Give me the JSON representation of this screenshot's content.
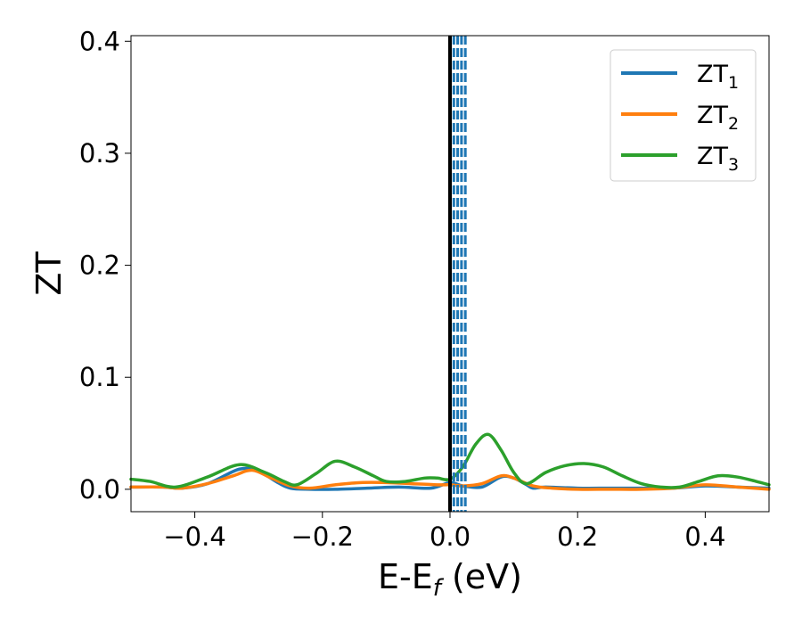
{
  "chart_data": {
    "type": "line",
    "title": "",
    "xlabel": "E-E",
    "xlabel_sub": "f",
    "xlabel_unit": " (eV)",
    "ylabel": "ZT",
    "xlim": [
      -0.5,
      0.5
    ],
    "ylim": [
      -0.02,
      0.405
    ],
    "xticks": [
      -0.4,
      -0.2,
      0.0,
      0.2,
      0.4
    ],
    "xtick_labels": [
      "−0.4",
      "−0.2",
      "0.0",
      "0.2",
      "0.4"
    ],
    "yticks": [
      0.0,
      0.1,
      0.2,
      0.3,
      0.4
    ],
    "ytick_labels": [
      "0.0",
      "0.1",
      "0.2",
      "0.3",
      "0.4"
    ],
    "grid": false,
    "legend_position": "top-right",
    "vertical_lines": [
      {
        "x": 0.0,
        "style": "solid",
        "color": "#000000"
      },
      {
        "x": 0.006,
        "style": "dashed",
        "color": "#1f77b4"
      },
      {
        "x": 0.012,
        "style": "dashed",
        "color": "#1f77b4"
      },
      {
        "x": 0.018,
        "style": "dashed",
        "color": "#1f77b4"
      },
      {
        "x": 0.024,
        "style": "dashed",
        "color": "#1f77b4"
      }
    ],
    "series": [
      {
        "name": "ZT",
        "name_sub": "1",
        "color": "#1f77b4",
        "x": [
          -0.5,
          -0.45,
          -0.42,
          -0.38,
          -0.33,
          -0.3,
          -0.27,
          -0.25,
          -0.22,
          -0.18,
          -0.13,
          -0.08,
          -0.03,
          0.0,
          0.02,
          0.05,
          0.08,
          0.1,
          0.12,
          0.13,
          0.15,
          0.2,
          0.25,
          0.3,
          0.35,
          0.4,
          0.45,
          0.5
        ],
        "y": [
          0.002,
          0.002,
          0.001,
          0.005,
          0.018,
          0.016,
          0.006,
          0.001,
          0.0,
          0.0,
          0.001,
          0.002,
          0.001,
          0.006,
          0.003,
          0.002,
          0.011,
          0.01,
          0.004,
          0.001,
          0.002,
          0.001,
          0.001,
          0.001,
          0.001,
          0.003,
          0.002,
          0.001
        ]
      },
      {
        "name": "ZT",
        "name_sub": "2",
        "color": "#ff7f0e",
        "x": [
          -0.5,
          -0.45,
          -0.42,
          -0.38,
          -0.34,
          -0.31,
          -0.28,
          -0.25,
          -0.22,
          -0.18,
          -0.14,
          -0.1,
          -0.06,
          -0.02,
          0.0,
          0.02,
          0.05,
          0.08,
          0.1,
          0.13,
          0.16,
          0.2,
          0.25,
          0.3,
          0.35,
          0.4,
          0.45,
          0.5
        ],
        "y": [
          0.002,
          0.002,
          0.001,
          0.005,
          0.012,
          0.017,
          0.01,
          0.003,
          0.001,
          0.004,
          0.006,
          0.006,
          0.005,
          0.004,
          0.004,
          0.003,
          0.005,
          0.012,
          0.01,
          0.003,
          0.001,
          0.0,
          0.0,
          0.0,
          0.001,
          0.004,
          0.002,
          0.0
        ]
      },
      {
        "name": "ZT",
        "name_sub": "3",
        "color": "#2ca02c",
        "x": [
          -0.5,
          -0.47,
          -0.43,
          -0.38,
          -0.33,
          -0.29,
          -0.26,
          -0.24,
          -0.21,
          -0.18,
          -0.15,
          -0.12,
          -0.1,
          -0.07,
          -0.04,
          -0.02,
          0.0,
          0.02,
          0.04,
          0.06,
          0.08,
          0.1,
          0.12,
          0.15,
          0.18,
          0.21,
          0.24,
          0.27,
          0.3,
          0.33,
          0.36,
          0.39,
          0.42,
          0.45,
          0.48,
          0.5
        ],
        "y": [
          0.009,
          0.007,
          0.002,
          0.011,
          0.022,
          0.015,
          0.007,
          0.004,
          0.014,
          0.025,
          0.02,
          0.012,
          0.007,
          0.007,
          0.01,
          0.01,
          0.009,
          0.02,
          0.04,
          0.049,
          0.035,
          0.015,
          0.005,
          0.015,
          0.021,
          0.023,
          0.02,
          0.012,
          0.005,
          0.002,
          0.002,
          0.007,
          0.012,
          0.011,
          0.007,
          0.004
        ]
      }
    ]
  }
}
